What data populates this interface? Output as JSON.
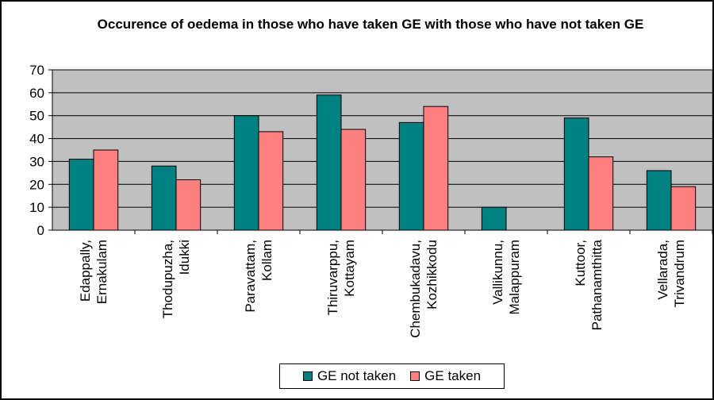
{
  "chart_data": {
    "type": "bar",
    "title": "Occurence of oedema in those who have taken GE with those who have not taken GE",
    "categories": [
      [
        "Edappally,",
        "Ernakulam"
      ],
      [
        "Thodupuzha,",
        "Idukki"
      ],
      [
        "Paravattam,",
        "Kollam"
      ],
      [
        "Thiruvarppu,",
        "Kottayam"
      ],
      [
        "Chembukadavu,",
        "Kozhikkodu"
      ],
      [
        "Vallikunnu,",
        "Malappuram"
      ],
      [
        "Kuttoor,",
        "Pathanamthitta"
      ],
      [
        "Vellarada,",
        "Trivandrum"
      ]
    ],
    "series": [
      {
        "name": "GE not taken",
        "color": "#008080",
        "values": [
          31,
          28,
          50,
          59,
          47,
          10,
          49,
          26
        ]
      },
      {
        "name": "GE taken",
        "color": "#FF8080",
        "values": [
          35,
          22,
          43,
          44,
          54,
          0,
          32,
          19
        ]
      }
    ],
    "ylim": [
      0,
      70
    ],
    "yticks": [
      0,
      10,
      20,
      30,
      40,
      50,
      60,
      70
    ],
    "grid": true,
    "plot_background": "#C0C0C0",
    "legend_position": "bottom"
  }
}
